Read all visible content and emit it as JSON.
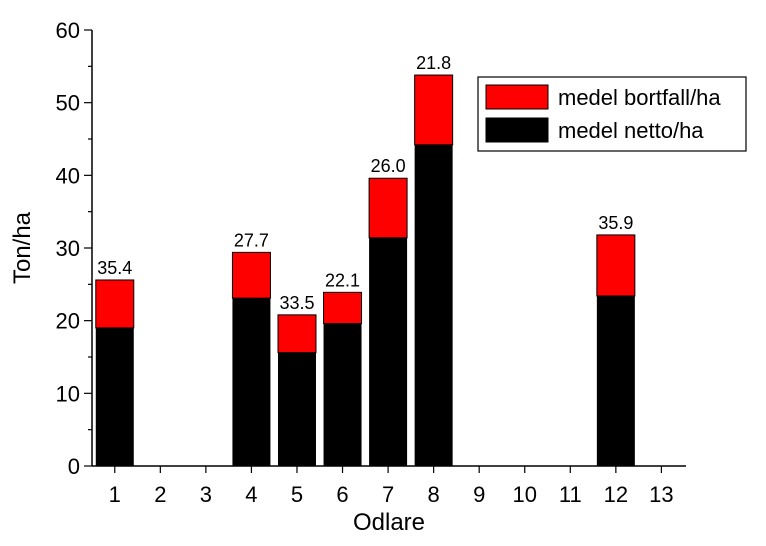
{
  "chart_data": {
    "type": "bar",
    "stacked": true,
    "xlabel": "Odlare",
    "ylabel": "Ton/ha",
    "ylim": [
      0,
      60
    ],
    "yticks": [
      0,
      10,
      20,
      30,
      40,
      50,
      60
    ],
    "categories": [
      "1",
      "2",
      "3",
      "4",
      "5",
      "6",
      "7",
      "8",
      "9",
      "10",
      "11",
      "12",
      "13"
    ],
    "series": [
      {
        "name": "medel netto/ha",
        "color": "#000000",
        "values": [
          19.0,
          null,
          null,
          23.1,
          15.6,
          19.6,
          31.4,
          44.2,
          null,
          null,
          null,
          23.4,
          null
        ]
      },
      {
        "name": "medel bortfall/ha",
        "color": "#ff0000",
        "values": [
          6.6,
          null,
          null,
          6.3,
          5.2,
          4.3,
          8.2,
          9.6,
          null,
          null,
          null,
          8.4,
          null
        ]
      }
    ],
    "bar_labels": [
      "35.4",
      null,
      null,
      "27.7",
      "33.5",
      "22.1",
      "26.0",
      "21.8",
      null,
      null,
      null,
      "35.9",
      null
    ],
    "legend": {
      "position": "top-right",
      "order": [
        "medel bortfall/ha",
        "medel netto/ha"
      ]
    },
    "grid": false
  }
}
